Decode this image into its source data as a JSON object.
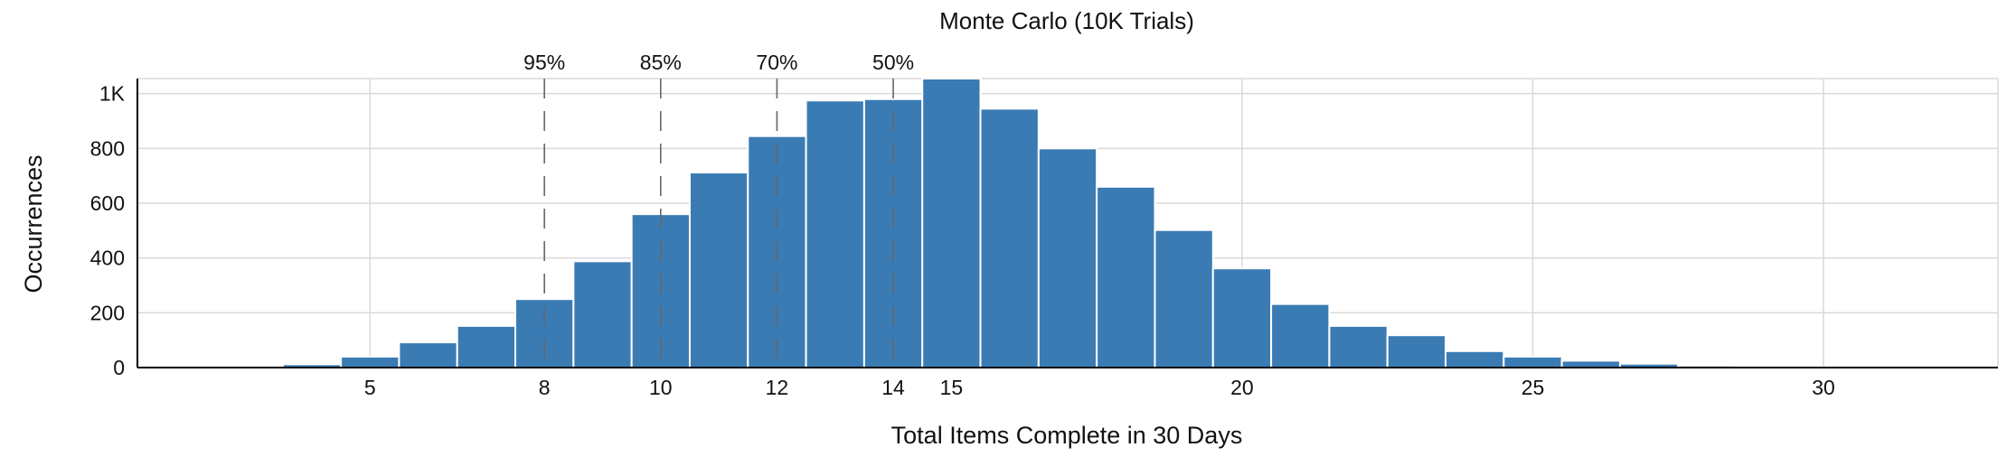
{
  "chart_data": {
    "type": "bar",
    "title": "Monte Carlo (10K Trials)",
    "xlabel": "Total Items Complete in 30 Days",
    "ylabel": "Occurrences",
    "x_ticks": [
      5,
      8,
      10,
      12,
      14,
      15,
      20,
      25,
      30
    ],
    "y_ticks": [
      {
        "value": 0,
        "label": "0"
      },
      {
        "value": 200,
        "label": "200"
      },
      {
        "value": 400,
        "label": "400"
      },
      {
        "value": 600,
        "label": "600"
      },
      {
        "value": 800,
        "label": "800"
      },
      {
        "value": 1000,
        "label": "1K"
      }
    ],
    "xlim": [
      1,
      33
    ],
    "ylim": [
      0,
      1055
    ],
    "grid": true,
    "bars": [
      {
        "x": 3,
        "value": 5
      },
      {
        "x": 4,
        "value": 12
      },
      {
        "x": 5,
        "value": 40
      },
      {
        "x": 6,
        "value": 92
      },
      {
        "x": 7,
        "value": 152
      },
      {
        "x": 8,
        "value": 250
      },
      {
        "x": 9,
        "value": 388
      },
      {
        "x": 10,
        "value": 560
      },
      {
        "x": 11,
        "value": 712
      },
      {
        "x": 12,
        "value": 845
      },
      {
        "x": 13,
        "value": 975
      },
      {
        "x": 14,
        "value": 980
      },
      {
        "x": 15,
        "value": 1055
      },
      {
        "x": 16,
        "value": 945
      },
      {
        "x": 17,
        "value": 800
      },
      {
        "x": 18,
        "value": 660
      },
      {
        "x": 19,
        "value": 502
      },
      {
        "x": 20,
        "value": 362
      },
      {
        "x": 21,
        "value": 232
      },
      {
        "x": 22,
        "value": 152
      },
      {
        "x": 23,
        "value": 118
      },
      {
        "x": 24,
        "value": 60
      },
      {
        "x": 25,
        "value": 40
      },
      {
        "x": 26,
        "value": 25
      },
      {
        "x": 27,
        "value": 14
      },
      {
        "x": 28,
        "value": 7
      },
      {
        "x": 29,
        "value": 2
      },
      {
        "x": 30,
        "value": 1
      },
      {
        "x": 31,
        "value": 1
      },
      {
        "x": 32,
        "value": 1
      }
    ],
    "percentiles": [
      {
        "label": "95%",
        "x": 8
      },
      {
        "label": "85%",
        "x": 10
      },
      {
        "label": "70%",
        "x": 12
      },
      {
        "label": "50%",
        "x": 14
      }
    ]
  }
}
